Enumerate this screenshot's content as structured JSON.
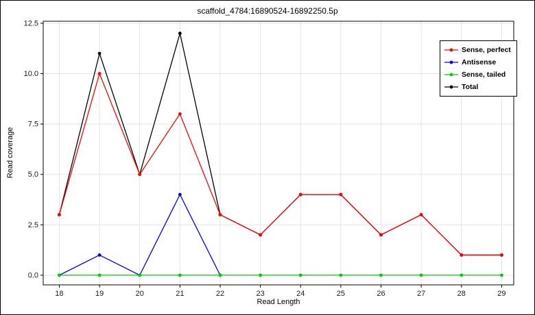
{
  "chart_data": {
    "type": "line",
    "title": "scaffold_4784:16890524-16892250.5p",
    "xlabel": "Read Length",
    "ylabel": "Read coverage",
    "xlim": [
      17.6,
      29.3
    ],
    "ylim": [
      -0.48,
      12.6
    ],
    "xticks": [
      18,
      19,
      20,
      21,
      22,
      23,
      24,
      25,
      26,
      27,
      28,
      29
    ],
    "yticks": [
      0.0,
      2.5,
      5.0,
      7.5,
      10.0,
      12.5
    ],
    "grid": true,
    "grid_color": "#e3e3e3",
    "legend_position": "top-right",
    "series": [
      {
        "name": "Sense, perfect",
        "color": "#ff0000",
        "zorder": 2,
        "x": [
          18,
          19,
          20,
          21,
          22,
          23,
          24,
          25,
          26,
          27,
          28,
          29
        ],
        "values": [
          3,
          10,
          5,
          8,
          3,
          2,
          4,
          4,
          2,
          3,
          1,
          1
        ]
      },
      {
        "name": "Antisense",
        "color": "#0000ff",
        "zorder": 1,
        "x": [
          18,
          19,
          20,
          21,
          22
        ],
        "values": [
          0,
          1,
          0,
          4,
          0
        ]
      },
      {
        "name": "Sense, tailed",
        "color": "#00cc00",
        "zorder": 3,
        "x": [
          18,
          19,
          20,
          21,
          22,
          23,
          24,
          25,
          26,
          27,
          28,
          29
        ],
        "values": [
          0,
          0,
          0,
          0,
          0,
          0,
          0,
          0,
          0,
          0,
          0,
          0
        ]
      },
      {
        "name": "Total",
        "color": "#000000",
        "zorder": 0,
        "x": [
          18,
          19,
          20,
          21,
          22,
          23,
          24,
          25,
          26,
          27,
          28,
          29
        ],
        "values": [
          3,
          11,
          5,
          12,
          3,
          2,
          4,
          4,
          2,
          3,
          1,
          1
        ]
      }
    ]
  }
}
